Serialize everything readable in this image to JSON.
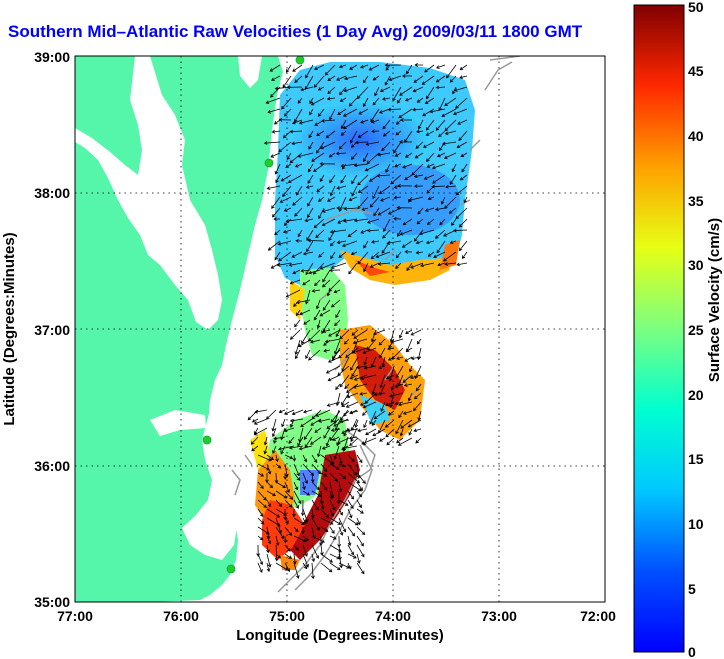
{
  "title": "Southern Mid–Atlantic Raw Velocities (1 Day Avg) 2009/03/11 1800 GMT",
  "map": {
    "x_axis": {
      "label": "Longitude (Degrees:Minutes)",
      "ticks": [
        "77:00",
        "76:00",
        "75:00",
        "74:00",
        "73:00",
        "72:00"
      ]
    },
    "y_axis": {
      "label": "Latitude (Degrees:Minutes)",
      "ticks": [
        "39:00",
        "38:00",
        "37:00",
        "36:00",
        "35:00"
      ]
    },
    "gridlines": "dotted"
  },
  "colorbar": {
    "label": "Surface Velocity (cm/s)",
    "ticks": [
      "0",
      "5",
      "10",
      "15",
      "20",
      "25",
      "30",
      "35",
      "40",
      "45",
      "50"
    ],
    "range": [
      0,
      50
    ],
    "colormap": "jet"
  },
  "colors": {
    "land": "#55f5aa",
    "title": "#0000ff",
    "station": "#22cc22"
  }
}
